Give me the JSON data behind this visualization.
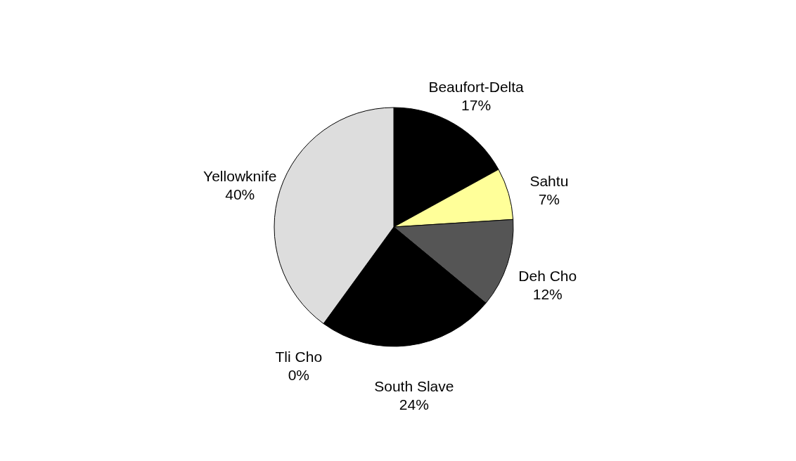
{
  "chart_data": {
    "type": "pie",
    "categories": [
      "Beaufort-Delta",
      "Sahtu",
      "Deh Cho",
      "South Slave",
      "Tli Cho",
      "Yellowknife"
    ],
    "values": [
      17,
      7,
      12,
      24,
      0,
      40
    ],
    "value_labels": [
      "17%",
      "7%",
      "12%",
      "24%",
      "0%",
      "40%"
    ],
    "colors": [
      "#000000",
      "#ffff99",
      "#555555",
      "#000000",
      "#ffffff",
      "#dddddd"
    ],
    "legend": false
  }
}
